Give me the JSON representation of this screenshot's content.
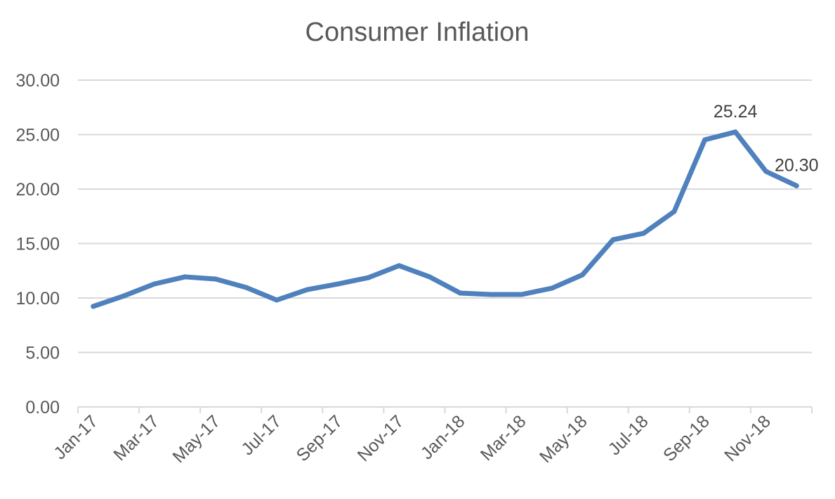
{
  "chart_data": {
    "type": "line",
    "title": "Consumer Inflation",
    "xlabel": "",
    "ylabel": "",
    "ylim": [
      0,
      30
    ],
    "yticks": [
      "0.00",
      "5.00",
      "10.00",
      "15.00",
      "20.00",
      "25.00",
      "30.00"
    ],
    "grid": true,
    "legend": "none",
    "categories": [
      "Jan-17",
      "Feb-17",
      "Mar-17",
      "Apr-17",
      "May-17",
      "Jun-17",
      "Jul-17",
      "Aug-17",
      "Sep-17",
      "Oct-17",
      "Nov-17",
      "Dec-17",
      "Jan-18",
      "Feb-18",
      "Mar-18",
      "Apr-18",
      "May-18",
      "Jun-18",
      "Jul-18",
      "Aug-18",
      "Sep-18",
      "Oct-18",
      "Nov-18",
      "Dec-18"
    ],
    "xtick_labels": [
      "Jan-17",
      "Mar-17",
      "May-17",
      "Jul-17",
      "Sep-17",
      "Nov-17",
      "Jan-18",
      "Mar-18",
      "May-18",
      "Jul-18",
      "Sep-18",
      "Nov-18"
    ],
    "series": [
      {
        "values": [
          9.23,
          10.19,
          11.29,
          11.94,
          11.74,
          10.97,
          9.81,
          10.77,
          11.29,
          11.87,
          12.97,
          11.94,
          10.45,
          10.32,
          10.32,
          10.9,
          12.13,
          15.35,
          15.94,
          17.94,
          24.52,
          25.24,
          21.62,
          20.3
        ]
      }
    ],
    "annotations": [
      {
        "category": "Oct-18",
        "label": "25.24"
      },
      {
        "category": "Dec-18",
        "label": "20.30"
      }
    ],
    "colors": {
      "line": "#4f81bd",
      "grid": "#d9d9d9",
      "text": "#595959",
      "title": "#595959"
    }
  }
}
